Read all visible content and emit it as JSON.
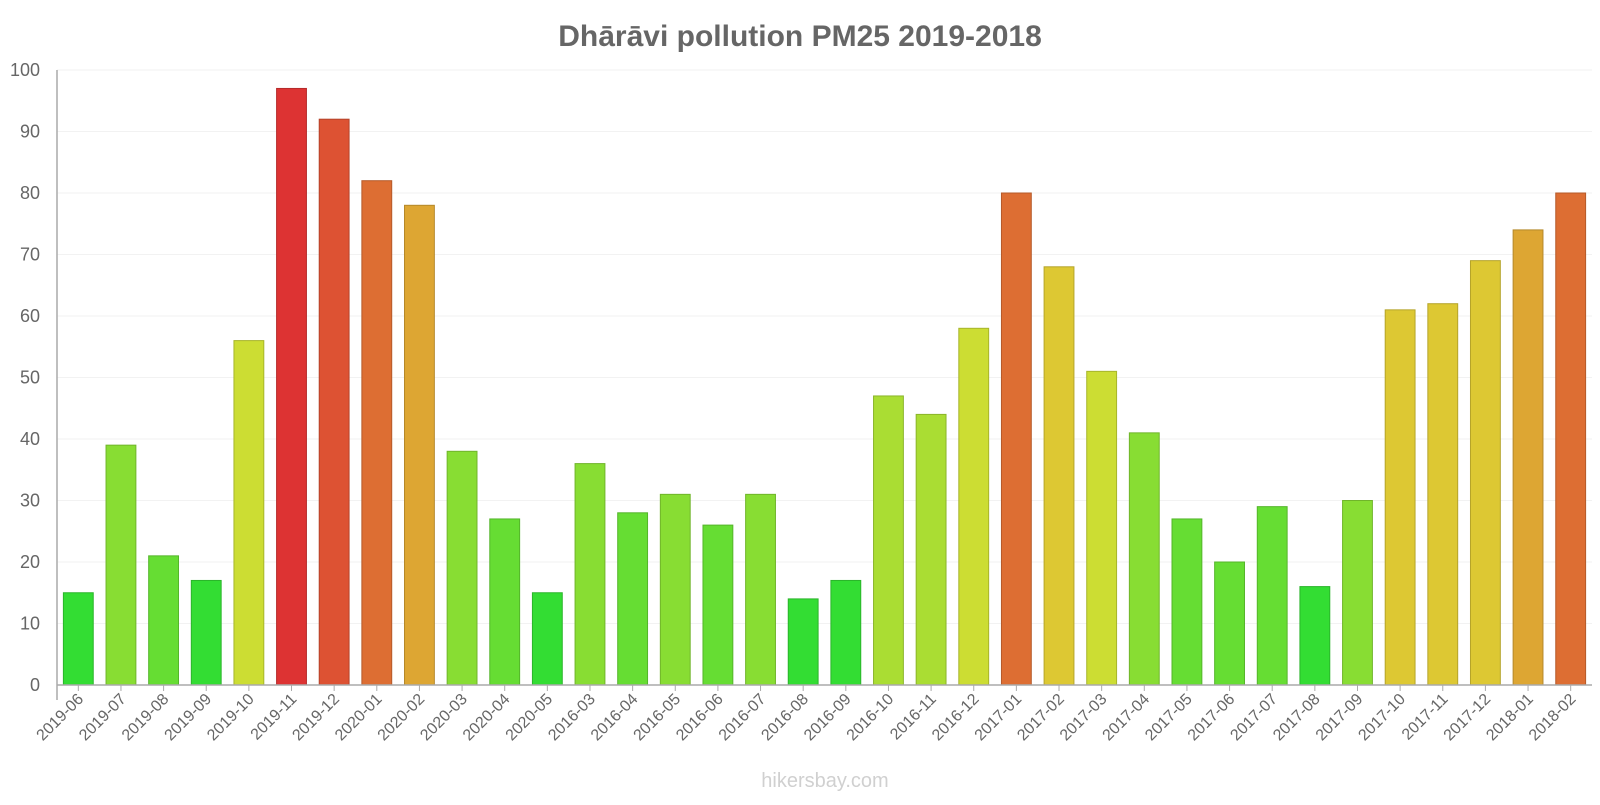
{
  "chart_data": {
    "type": "bar",
    "title": "Dhārāvi pollution PM25 2019-2018",
    "xlabel": "",
    "ylabel": "",
    "ylim": [
      0,
      100
    ],
    "yticks": [
      0,
      10,
      20,
      30,
      40,
      50,
      60,
      70,
      80,
      90,
      100
    ],
    "grid": true,
    "legend": "none",
    "categories": [
      "2019-06",
      "2019-07",
      "2019-08",
      "2019-09",
      "2019-10",
      "2019-11",
      "2019-12",
      "2020-01",
      "2020-02",
      "2020-03",
      "2020-04",
      "2020-05",
      "2016-03",
      "2016-04",
      "2016-05",
      "2016-06",
      "2016-07",
      "2016-08",
      "2016-09",
      "2016-10",
      "2016-11",
      "2016-12",
      "2017-01",
      "2017-02",
      "2017-03",
      "2017-04",
      "2017-05",
      "2017-06",
      "2017-07",
      "2017-08",
      "2017-09",
      "2017-10",
      "2017-11",
      "2017-12",
      "2018-01",
      "2018-02"
    ],
    "values": [
      15,
      39,
      21,
      17,
      56,
      97,
      92,
      82,
      78,
      38,
      27,
      15,
      36,
      28,
      31,
      26,
      31,
      14,
      17,
      47,
      44,
      58,
      80,
      68,
      51,
      41,
      27,
      20,
      29,
      16,
      30,
      61,
      62,
      69,
      74,
      80
    ],
    "colors": {
      "green": "#33dd33",
      "lightgreen": "#66dd33",
      "lime": "#88dd33",
      "yellowgreen": "#aadd33",
      "yellow": "#ccdd33",
      "gold": "#ddc833",
      "amber": "#dda633",
      "orange": "#dd6e33",
      "redorange": "#dd5233",
      "red": "#dd3333"
    }
  },
  "watermark": "hikersbay.com"
}
